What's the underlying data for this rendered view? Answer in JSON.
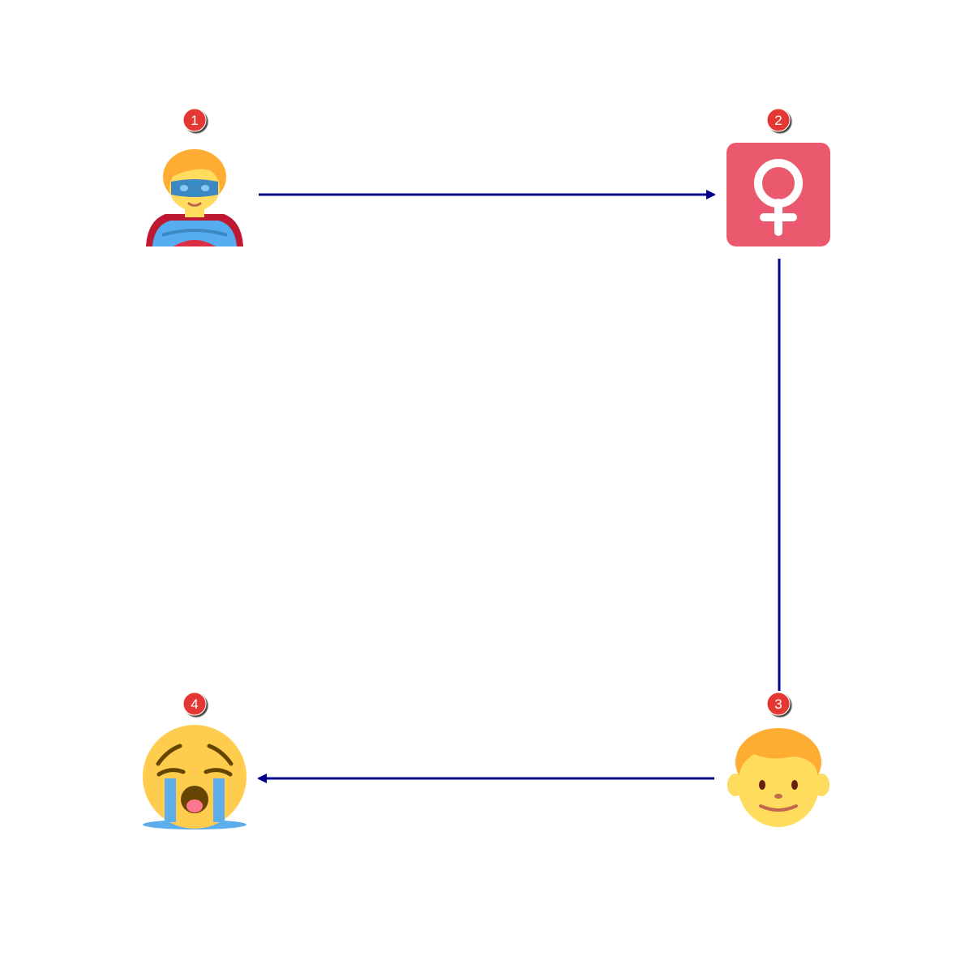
{
  "diagram": {
    "edge_color": "#00008b",
    "badge_color": "#e53935",
    "nodes": [
      {
        "id": "node-1",
        "badge": "1",
        "icon": "superhero-icon"
      },
      {
        "id": "node-2",
        "badge": "2",
        "icon": "female-sign-icon",
        "accent": "#ea596e"
      },
      {
        "id": "node-3",
        "badge": "3",
        "icon": "boy-face-icon"
      },
      {
        "id": "node-4",
        "badge": "4",
        "icon": "loudly-crying-face-icon"
      }
    ],
    "edges": [
      {
        "from": "node-1",
        "to": "node-2",
        "arrow": "end"
      },
      {
        "from": "node-2",
        "to": "node-3",
        "arrow": "none"
      },
      {
        "from": "node-3",
        "to": "node-4",
        "arrow": "end"
      }
    ]
  }
}
